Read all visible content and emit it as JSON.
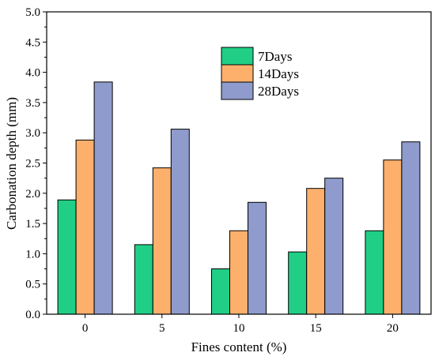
{
  "chart_data": {
    "type": "bar",
    "title": "",
    "xlabel": "Fines content (%)",
    "ylabel": "Carbonation depth (mm)",
    "categories": [
      "0",
      "5",
      "10",
      "15",
      "20"
    ],
    "ylim": [
      0,
      5.0
    ],
    "yticks": [
      "0.0",
      "0.5",
      "1.0",
      "1.5",
      "2.0",
      "2.5",
      "3.0",
      "3.5",
      "4.0",
      "4.5",
      "5.0"
    ],
    "legend_position": "top-center",
    "grid": false,
    "series": [
      {
        "name": "7Days",
        "color": "#20cf85",
        "values": [
          1.89,
          1.15,
          0.75,
          1.03,
          1.38
        ]
      },
      {
        "name": "14Days",
        "color": "#fcb06c",
        "values": [
          2.88,
          2.42,
          1.38,
          2.08,
          2.55
        ]
      },
      {
        "name": "28Days",
        "color": "#8f9bcc",
        "values": [
          3.84,
          3.06,
          1.85,
          2.25,
          2.85
        ]
      }
    ]
  }
}
